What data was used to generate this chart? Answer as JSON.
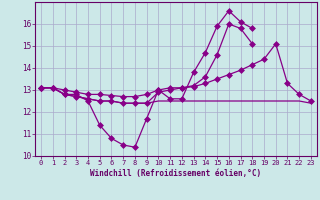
{
  "xlabel": "Windchill (Refroidissement éolien,°C)",
  "background_color": "#cce8e8",
  "grid_color": "#aaaacc",
  "line_color": "#880088",
  "x": [
    0,
    1,
    2,
    3,
    4,
    5,
    6,
    7,
    8,
    9,
    10,
    11,
    12,
    13,
    14,
    15,
    16,
    17,
    18,
    19,
    20,
    21,
    22,
    23
  ],
  "series1": [
    13.1,
    13.1,
    12.8,
    12.8,
    12.5,
    11.4,
    10.8,
    10.5,
    10.4,
    11.7,
    13.0,
    12.6,
    12.6,
    13.8,
    14.7,
    15.9,
    16.6,
    16.1,
    15.8,
    null,
    null,
    null,
    null,
    null
  ],
  "series2": [
    13.1,
    13.1,
    13.0,
    12.9,
    12.8,
    12.8,
    12.75,
    12.7,
    12.7,
    12.8,
    13.0,
    13.1,
    13.1,
    13.15,
    13.3,
    13.5,
    13.7,
    13.9,
    14.15,
    14.4,
    15.1,
    13.3,
    12.8,
    12.5
  ],
  "series3": [
    13.1,
    13.1,
    12.8,
    12.7,
    12.6,
    12.5,
    12.5,
    12.4,
    12.4,
    12.4,
    12.5,
    12.5,
    12.5,
    12.5,
    12.5,
    12.5,
    12.5,
    12.5,
    12.5,
    12.5,
    12.5,
    12.5,
    12.5,
    12.4
  ],
  "series4": [
    13.1,
    13.1,
    12.8,
    12.7,
    12.6,
    12.5,
    12.5,
    12.4,
    12.4,
    12.4,
    12.9,
    13.0,
    13.1,
    13.2,
    13.6,
    14.6,
    16.0,
    15.8,
    15.1,
    null,
    null,
    null,
    null,
    null
  ],
  "ylim": [
    10,
    17
  ],
  "xlim": [
    -0.5,
    23.5
  ],
  "yticks": [
    10,
    11,
    12,
    13,
    14,
    15,
    16
  ],
  "xticks": [
    0,
    1,
    2,
    3,
    4,
    5,
    6,
    7,
    8,
    9,
    10,
    11,
    12,
    13,
    14,
    15,
    16,
    17,
    18,
    19,
    20,
    21,
    22,
    23
  ],
  "marker_size": 3,
  "line_width": 0.9
}
